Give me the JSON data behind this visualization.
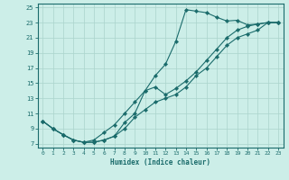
{
  "xlabel": "Humidex (Indice chaleur)",
  "ylabel": "",
  "background_color": "#cceee8",
  "grid_color": "#aad4cc",
  "line_color": "#1a6b6b",
  "xlim": [
    -0.5,
    23.5
  ],
  "ylim": [
    6.5,
    25.5
  ],
  "xticks": [
    0,
    1,
    2,
    3,
    4,
    5,
    6,
    7,
    8,
    9,
    10,
    11,
    12,
    13,
    14,
    15,
    16,
    17,
    18,
    19,
    20,
    21,
    22,
    23
  ],
  "yticks": [
    7,
    9,
    11,
    13,
    15,
    17,
    19,
    21,
    23,
    25
  ],
  "line1_x": [
    0,
    1,
    2,
    3,
    4,
    5,
    6,
    7,
    8,
    9,
    10,
    11,
    12,
    13,
    14,
    15,
    16,
    17,
    18,
    19,
    20,
    21,
    22,
    23
  ],
  "line1_y": [
    10.0,
    9.0,
    8.2,
    7.5,
    7.2,
    7.5,
    8.5,
    9.5,
    11.0,
    12.5,
    14.0,
    16.0,
    17.5,
    20.5,
    24.7,
    24.5,
    24.3,
    23.7,
    23.2,
    23.3,
    22.7,
    22.8,
    23.0,
    23.0
  ],
  "line2_x": [
    0,
    1,
    2,
    3,
    4,
    5,
    6,
    7,
    8,
    9,
    10,
    11,
    12,
    13,
    14,
    15,
    16,
    17,
    18,
    19,
    20,
    21,
    22,
    23
  ],
  "line2_y": [
    10.0,
    9.0,
    8.2,
    7.5,
    7.2,
    7.2,
    7.5,
    8.0,
    9.8,
    11.0,
    14.0,
    14.5,
    13.5,
    14.3,
    15.3,
    16.5,
    18.0,
    19.5,
    21.0,
    22.0,
    22.5,
    22.8,
    23.0,
    23.0
  ],
  "line3_x": [
    0,
    1,
    2,
    3,
    4,
    5,
    6,
    7,
    8,
    9,
    10,
    11,
    12,
    13,
    14,
    15,
    16,
    17,
    18,
    19,
    20,
    21,
    22,
    23
  ],
  "line3_y": [
    10.0,
    9.0,
    8.2,
    7.5,
    7.2,
    7.2,
    7.5,
    8.0,
    9.0,
    10.5,
    11.5,
    12.5,
    13.0,
    13.5,
    14.5,
    16.0,
    17.0,
    18.5,
    20.0,
    21.0,
    21.5,
    22.0,
    23.0,
    23.0
  ]
}
